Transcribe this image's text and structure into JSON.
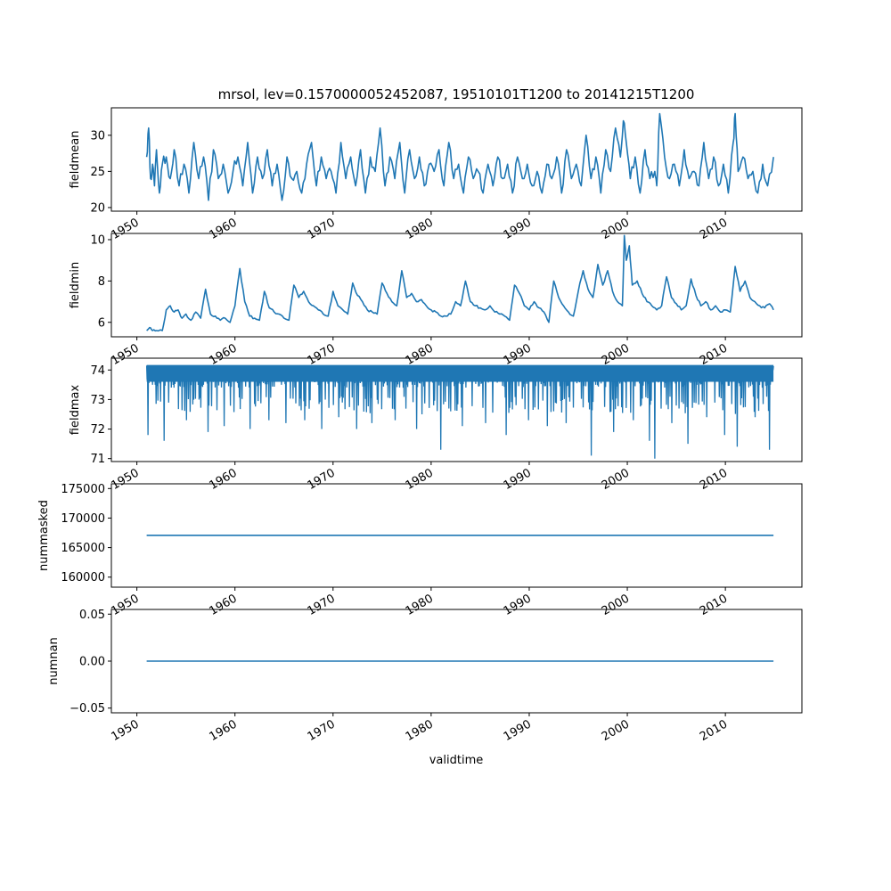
{
  "figure": {
    "title": "mrsol, lev=0.1570000052452087, 19510101T1200 to 20141215T1200",
    "xlabel": "validtime",
    "line_color": "#1f77b4"
  },
  "chart_data": [
    {
      "type": "line",
      "ylabel": "fieldmean",
      "xlim": [
        1947.4,
        2017.8
      ],
      "ylim": [
        19.5,
        33.8
      ],
      "yticks": [
        20,
        25,
        30
      ],
      "ytick_labels": [
        "20",
        "25",
        "30"
      ],
      "xticks": [
        1950,
        1960,
        1970,
        1980,
        1990,
        2000,
        2010
      ],
      "xtick_labels": [
        "1950",
        "1960",
        "1970",
        "1980",
        "1990",
        "2000",
        "2010"
      ],
      "series": [
        {
          "x": [
            1951.0,
            1951.2,
            1951.4,
            1951.6,
            1951.8,
            1952.0,
            1952.3,
            1952.6,
            1953.0,
            1953.4,
            1953.8,
            1954.3,
            1954.8,
            1955.3,
            1955.8,
            1956.3,
            1956.8,
            1957.3,
            1957.8,
            1958.3,
            1958.8,
            1959.3,
            1959.8,
            1960.3,
            1960.8,
            1961.3,
            1961.8,
            1962.3,
            1962.8,
            1963.3,
            1963.8,
            1964.3,
            1964.8,
            1965.3,
            1965.8,
            1966.3,
            1966.8,
            1967.3,
            1967.8,
            1968.3,
            1968.8,
            1969.3,
            1969.8,
            1970.3,
            1970.8,
            1971.3,
            1971.8,
            1972.3,
            1972.8,
            1973.3,
            1973.8,
            1974.3,
            1974.8,
            1975.3,
            1975.8,
            1976.3,
            1976.8,
            1977.3,
            1977.8,
            1978.3,
            1978.8,
            1979.3,
            1979.8,
            1980.3,
            1980.8,
            1981.3,
            1981.8,
            1982.3,
            1982.8,
            1983.3,
            1983.8,
            1984.3,
            1984.8,
            1985.3,
            1985.8,
            1986.3,
            1986.8,
            1987.3,
            1987.8,
            1988.3,
            1988.8,
            1989.3,
            1989.8,
            1990.3,
            1990.8,
            1991.3,
            1991.8,
            1992.3,
            1992.8,
            1993.3,
            1993.8,
            1994.3,
            1994.8,
            1995.3,
            1995.8,
            1996.3,
            1996.8,
            1997.3,
            1997.8,
            1998.3,
            1998.8,
            1999.3,
            1999.6,
            1999.9,
            2000.3,
            2000.8,
            2001.3,
            2001.8,
            2002.3,
            2002.8,
            2003.0,
            2003.3,
            2003.8,
            2004.3,
            2004.8,
            2005.3,
            2005.8,
            2006.3,
            2006.8,
            2007.3,
            2007.8,
            2008.3,
            2008.8,
            2009.3,
            2009.8,
            2010.3,
            2010.8,
            2011.0,
            2011.3,
            2011.8,
            2012.3,
            2012.8,
            2013.3,
            2013.8,
            2014.3,
            2014.9
          ],
          "y": [
            27,
            31,
            24,
            26,
            23,
            28,
            22,
            26,
            27,
            24,
            28,
            23,
            26,
            22,
            29,
            24,
            27,
            21,
            28,
            24,
            26,
            22,
            25,
            27,
            23,
            29,
            22,
            27,
            24,
            28,
            23,
            26,
            21,
            27,
            24,
            25,
            22,
            26,
            29,
            23,
            27,
            24,
            25,
            22,
            29,
            24,
            27,
            23,
            28,
            22,
            27,
            25,
            31,
            23,
            27,
            24,
            29,
            22,
            28,
            24,
            27,
            23,
            26,
            25,
            28,
            23,
            29,
            24,
            26,
            22,
            27,
            24,
            25,
            22,
            26,
            23,
            27,
            24,
            26,
            22,
            27,
            24,
            26,
            23,
            25,
            22,
            26,
            24,
            27,
            22,
            28,
            24,
            26,
            23,
            30,
            24,
            27,
            22,
            28,
            25,
            31,
            27,
            32,
            29,
            24,
            27,
            22,
            28,
            24,
            25,
            23,
            33,
            27,
            24,
            26,
            23,
            28,
            24,
            25,
            23,
            29,
            24,
            27,
            23,
            26,
            22,
            29,
            33,
            25,
            27,
            24,
            25,
            22,
            26,
            23,
            27
          ],
          "label": ""
        }
      ]
    },
    {
      "type": "line",
      "ylabel": "fieldmin",
      "xlim": [
        1947.4,
        2017.8
      ],
      "ylim": [
        5.3,
        10.3
      ],
      "yticks": [
        6,
        8,
        10
      ],
      "ytick_labels": [
        "6",
        "8",
        "10"
      ],
      "xticks": [
        1950,
        1960,
        1970,
        1980,
        1990,
        2000,
        2010
      ],
      "xtick_labels": [
        "1950",
        "1960",
        "1970",
        "1980",
        "1990",
        "2000",
        "2010"
      ],
      "series": [
        {
          "x": [
            1951.0,
            1951.3,
            1951.6,
            1952.0,
            1952.6,
            1953.0,
            1953.4,
            1953.8,
            1954.2,
            1954.6,
            1955.0,
            1955.5,
            1956.0,
            1956.5,
            1957.0,
            1957.5,
            1958.0,
            1958.5,
            1959.0,
            1959.5,
            1960.0,
            1960.5,
            1961.0,
            1961.5,
            1962.0,
            1962.5,
            1963.0,
            1963.5,
            1964.0,
            1964.5,
            1965.0,
            1965.5,
            1966.0,
            1966.5,
            1967.0,
            1967.5,
            1968.0,
            1968.5,
            1969.0,
            1969.5,
            1970.0,
            1970.5,
            1971.0,
            1971.5,
            1972.0,
            1972.5,
            1973.0,
            1973.5,
            1974.0,
            1974.5,
            1975.0,
            1975.5,
            1976.0,
            1976.5,
            1977.0,
            1977.5,
            1978.0,
            1978.5,
            1979.0,
            1979.5,
            1980.0,
            1980.5,
            1981.0,
            1981.5,
            1982.0,
            1982.5,
            1983.0,
            1983.5,
            1984.0,
            1984.5,
            1985.0,
            1985.5,
            1986.0,
            1986.5,
            1987.0,
            1987.5,
            1988.0,
            1988.5,
            1989.0,
            1989.5,
            1990.0,
            1990.5,
            1991.0,
            1991.5,
            1992.0,
            1992.5,
            1993.0,
            1993.5,
            1994.0,
            1994.5,
            1995.0,
            1995.5,
            1996.0,
            1996.5,
            1997.0,
            1997.5,
            1998.0,
            1998.5,
            1999.0,
            1999.5,
            1999.7,
            1999.9,
            2000.2,
            2000.5,
            2001.0,
            2001.5,
            2002.0,
            2002.5,
            2003.0,
            2003.5,
            2004.0,
            2004.5,
            2005.0,
            2005.5,
            2006.0,
            2006.5,
            2007.0,
            2007.5,
            2008.0,
            2008.5,
            2009.0,
            2009.5,
            2010.0,
            2010.5,
            2011.0,
            2011.5,
            2012.0,
            2012.5,
            2013.0,
            2013.5,
            2014.0,
            2014.5,
            2014.9
          ],
          "y": [
            5.6,
            5.75,
            5.6,
            5.6,
            5.6,
            6.6,
            6.8,
            6.5,
            6.6,
            6.2,
            6.4,
            6.1,
            6.5,
            6.2,
            7.6,
            6.4,
            6.3,
            6.1,
            6.2,
            6.0,
            6.8,
            8.6,
            7.0,
            6.3,
            6.2,
            6.1,
            7.5,
            6.7,
            6.5,
            6.4,
            6.2,
            6.1,
            7.8,
            7.2,
            7.5,
            7.0,
            6.8,
            6.6,
            6.4,
            6.3,
            7.5,
            6.8,
            6.6,
            6.4,
            7.9,
            7.3,
            7.0,
            6.6,
            6.5,
            6.4,
            7.9,
            7.4,
            7.0,
            6.8,
            8.5,
            7.2,
            7.4,
            7.0,
            7.1,
            6.8,
            6.6,
            6.5,
            6.3,
            6.3,
            6.4,
            7.0,
            6.8,
            8.0,
            7.0,
            6.8,
            6.7,
            6.6,
            6.8,
            6.5,
            6.4,
            6.3,
            6.1,
            7.8,
            7.4,
            6.8,
            6.6,
            7.0,
            6.7,
            6.5,
            6.0,
            8.0,
            7.2,
            6.8,
            6.5,
            6.3,
            7.5,
            8.5,
            7.6,
            7.2,
            8.8,
            7.8,
            8.5,
            7.5,
            7.0,
            6.8,
            10.2,
            9.0,
            9.7,
            7.8,
            8.0,
            7.4,
            7.0,
            6.8,
            6.6,
            6.8,
            8.2,
            7.2,
            6.9,
            6.6,
            6.8,
            8.1,
            7.3,
            6.8,
            7.0,
            6.6,
            6.8,
            6.5,
            6.6,
            6.5,
            8.7,
            7.5,
            8.0,
            7.2,
            7.0,
            6.8,
            6.7,
            6.9,
            6.6
          ],
          "label": ""
        }
      ]
    },
    {
      "type": "line",
      "ylabel": "fieldmax",
      "xlim": [
        1947.4,
        2017.8
      ],
      "ylim": [
        70.9,
        74.4
      ],
      "yticks": [
        71,
        72,
        73,
        74
      ],
      "ytick_labels": [
        "71",
        "72",
        "73",
        "74"
      ],
      "xticks": [
        1950,
        1960,
        1970,
        1980,
        1990,
        2000,
        2010
      ],
      "xtick_labels": [
        "1950",
        "1960",
        "1970",
        "1980",
        "1990",
        "2000",
        "2010"
      ],
      "series": [
        {
          "x_start": 1951.0,
          "x_end": 2014.9,
          "upper": 74.15,
          "typical_low": 73.0,
          "dips": [
            {
              "x": 1951.1,
              "y": 71.8
            },
            {
              "x": 1952.8,
              "y": 71.6
            },
            {
              "x": 1955.0,
              "y": 72.3
            },
            {
              "x": 1957.2,
              "y": 71.9
            },
            {
              "x": 1958.9,
              "y": 72.1
            },
            {
              "x": 1961.5,
              "y": 72.0
            },
            {
              "x": 1963.4,
              "y": 72.3
            },
            {
              "x": 1965.2,
              "y": 72.2
            },
            {
              "x": 1967.1,
              "y": 72.3
            },
            {
              "x": 1968.8,
              "y": 72.0
            },
            {
              "x": 1970.6,
              "y": 72.4
            },
            {
              "x": 1972.4,
              "y": 72.0
            },
            {
              "x": 1973.9,
              "y": 72.2
            },
            {
              "x": 1976.3,
              "y": 72.3
            },
            {
              "x": 1978.5,
              "y": 72.0
            },
            {
              "x": 1981.0,
              "y": 71.3
            },
            {
              "x": 1983.2,
              "y": 72.1
            },
            {
              "x": 1985.5,
              "y": 72.2
            },
            {
              "x": 1987.6,
              "y": 71.8
            },
            {
              "x": 1989.9,
              "y": 72.3
            },
            {
              "x": 1991.8,
              "y": 72.1
            },
            {
              "x": 1993.7,
              "y": 72.2
            },
            {
              "x": 1996.3,
              "y": 71.1
            },
            {
              "x": 1998.6,
              "y": 71.9
            },
            {
              "x": 2000.6,
              "y": 72.3
            },
            {
              "x": 2002.2,
              "y": 71.6
            },
            {
              "x": 2002.8,
              "y": 71.0
            },
            {
              "x": 2004.5,
              "y": 72.2
            },
            {
              "x": 2006.2,
              "y": 71.5
            },
            {
              "x": 2008.1,
              "y": 72.4
            },
            {
              "x": 2009.9,
              "y": 71.8
            },
            {
              "x": 2011.2,
              "y": 71.4
            },
            {
              "x": 2013.0,
              "y": 72.4
            },
            {
              "x": 2014.5,
              "y": 71.3
            }
          ],
          "label": ""
        }
      ]
    },
    {
      "type": "line",
      "ylabel": "nummasked",
      "xlim": [
        1947.4,
        2017.8
      ],
      "ylim": [
        158300,
        175800
      ],
      "yticks": [
        160000,
        165000,
        170000,
        175000
      ],
      "ytick_labels": [
        "160000",
        "165000",
        "170000",
        "175000"
      ],
      "xticks": [
        1950,
        1960,
        1970,
        1980,
        1990,
        2000,
        2010
      ],
      "xtick_labels": [
        "1950",
        "1960",
        "1970",
        "1980",
        "1990",
        "2000",
        "2010"
      ],
      "series": [
        {
          "x": [
            1951.0,
            2014.9
          ],
          "y": [
            167080,
            167080
          ],
          "label": ""
        }
      ]
    },
    {
      "type": "line",
      "ylabel": "numnan",
      "xlim": [
        1947.4,
        2017.8
      ],
      "ylim": [
        -0.055,
        0.055
      ],
      "yticks": [
        -0.05,
        0.0,
        0.05
      ],
      "ytick_labels": [
        "−0.05",
        "0.00",
        "0.05"
      ],
      "xticks": [
        1950,
        1960,
        1970,
        1980,
        1990,
        2000,
        2010
      ],
      "xtick_labels": [
        "1950",
        "1960",
        "1970",
        "1980",
        "1990",
        "2000",
        "2010"
      ],
      "series": [
        {
          "x": [
            1951.0,
            2014.9
          ],
          "y": [
            0,
            0
          ],
          "label": ""
        }
      ]
    }
  ]
}
